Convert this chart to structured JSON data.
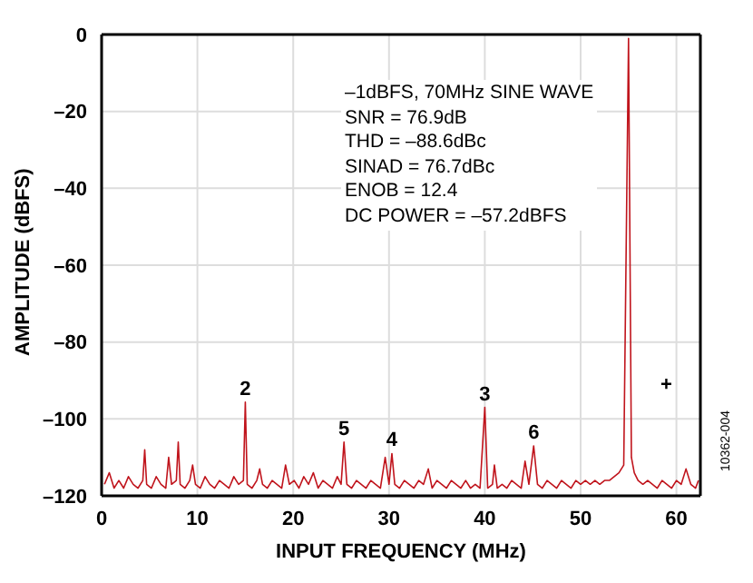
{
  "chart_data": {
    "type": "line",
    "xlabel": "INPUT FREQUENCY (MHz)",
    "ylabel": "AMPLITUDE (dBFS)",
    "xlim": [
      0,
      62.5
    ],
    "xticks": [
      0,
      10,
      20,
      30,
      40,
      50,
      60
    ],
    "ylim": [
      -120,
      0
    ],
    "yticks": [
      0,
      {
        "value": -20,
        "label": "–20"
      },
      {
        "value": -40,
        "label": "–40"
      },
      {
        "value": -60,
        "label": "–60"
      },
      {
        "value": -80,
        "label": "–80"
      },
      {
        "value": -100,
        "label": "–100"
      },
      {
        "value": -120,
        "label": "–120"
      }
    ],
    "grid": true,
    "line_style": "solid",
    "annotations": [
      "–1dBFS, 70MHz SINE WAVE\nSNR = 76.9dB\nTHD = –88.6dBc\nSINAD = 76.7dBc\nENOB = 12.4\nDC POWER = –57.2dBFS",
      "10362-004",
      {
        "text": "2",
        "x": 15.0,
        "y": -95.6
      },
      {
        "text": "3",
        "x": 40.0,
        "y": -97
      },
      {
        "text": "4",
        "x": 30.3,
        "y": -109
      },
      {
        "text": "5",
        "x": 25.3,
        "y": -106
      },
      {
        "text": "6",
        "x": 45.1,
        "y": -107
      },
      "+"
    ],
    "series": [
      {
        "color": "#c0141c",
        "x": [
          0.3,
          0.8,
          1.3,
          1.8,
          2.3,
          2.8,
          3.3,
          3.8,
          4.3,
          4.5,
          4.7,
          5.2,
          5.7,
          6.2,
          6.7,
          7.0,
          7.3,
          7.8,
          8.0,
          8.2,
          8.7,
          9.2,
          9.5,
          9.8,
          10.3,
          10.8,
          11.3,
          11.8,
          12.3,
          12.8,
          13.3,
          13.8,
          14.3,
          14.8,
          15.0,
          15.2,
          15.7,
          16.2,
          16.5,
          16.8,
          17.3,
          17.8,
          18.3,
          18.8,
          19.2,
          19.6,
          20.1,
          20.6,
          21.1,
          21.6,
          22.1,
          22.6,
          23.1,
          23.6,
          24.1,
          24.6,
          25.0,
          25.3,
          25.6,
          26.1,
          26.6,
          27.1,
          27.6,
          28.1,
          28.6,
          29.1,
          29.6,
          30.0,
          30.3,
          30.6,
          31.1,
          31.6,
          32.1,
          32.6,
          33.1,
          33.6,
          34.1,
          34.5,
          35.0,
          35.5,
          36.0,
          36.5,
          37.0,
          37.5,
          38.0,
          38.5,
          39.0,
          39.5,
          40.0,
          40.3,
          40.8,
          41.0,
          41.3,
          41.8,
          42.3,
          42.8,
          43.3,
          43.8,
          44.2,
          44.6,
          45.1,
          45.5,
          46.0,
          46.5,
          47.0,
          47.5,
          48.0,
          48.5,
          49.0,
          49.5,
          50.0,
          50.5,
          51.0,
          51.5,
          52.0,
          52.5,
          53.0,
          53.5,
          54.0,
          54.5,
          55.0,
          55.3,
          55.6,
          56.0,
          56.5,
          57.0,
          57.5,
          58.0,
          58.5,
          59.0,
          59.5,
          60.0,
          60.5,
          61.0,
          61.5,
          62.0,
          62.3
        ],
        "values": [
          -117,
          -114,
          -118,
          -116,
          -118,
          -115,
          -117,
          -118,
          -116,
          -108,
          -117,
          -118,
          -115,
          -117,
          -118,
          -110,
          -117,
          -116,
          -106,
          -117,
          -118,
          -116,
          -112,
          -117,
          -118,
          -115,
          -117,
          -118,
          -116,
          -117,
          -118,
          -115,
          -117,
          -116,
          -95.6,
          -117,
          -118,
          -116,
          -113,
          -117,
          -118,
          -116,
          -117,
          -118,
          -112,
          -117,
          -116,
          -118,
          -115,
          -117,
          -114,
          -118,
          -116,
          -117,
          -118,
          -115,
          -117,
          -106,
          -117,
          -118,
          -116,
          -117,
          -118,
          -116,
          -117,
          -118,
          -110,
          -117,
          -109,
          -117,
          -118,
          -116,
          -117,
          -118,
          -116,
          -117,
          -113,
          -118,
          -116,
          -117,
          -118,
          -116,
          -117,
          -118,
          -116,
          -118,
          -117,
          -118,
          -97,
          -118,
          -117,
          -112,
          -118,
          -117,
          -118,
          -116,
          -117,
          -118,
          -111,
          -117,
          -107,
          -117,
          -118,
          -116,
          -117,
          -118,
          -116,
          -117,
          -118,
          -116,
          -117,
          -116,
          -117,
          -116,
          -117,
          -116,
          -116,
          -115,
          -114,
          -112,
          -1,
          -110,
          -114,
          -116,
          -117,
          -116,
          -117,
          -118,
          -116,
          -117,
          -118,
          -116,
          -117,
          -113,
          -117,
          -118,
          -116
        ]
      }
    ]
  }
}
